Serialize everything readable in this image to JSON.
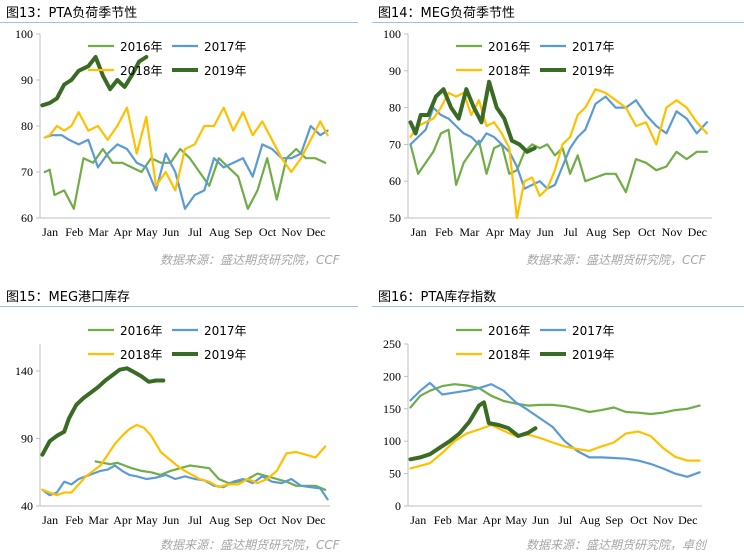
{
  "source_left": "数据来源：盛达期货研究院，CCF",
  "source_right_top": "数据来源：盛达期货研究院，CCF",
  "source_left_bottom": "数据来源：盛达期货研究院，CCF",
  "source_right_bottom": "数据来源：盛达期货研究院，卓创",
  "colors": {
    "2016年": "#70ad47",
    "2017年": "#5b9bd5",
    "2018年": "#ffc000",
    "2019年": "#3a6b25"
  },
  "months": [
    "Jan",
    "Feb",
    "Mar",
    "Apr",
    "May",
    "Jun",
    "Jul",
    "Aug",
    "Sep",
    "Oct",
    "Nov",
    "Dec"
  ],
  "month_labels": [
    "Jan",
    "Feb",
    "Mar",
    "Apr",
    "May",
    "Jun",
    "Jul",
    "Aug",
    "Sep",
    "Oct",
    "Nov",
    "Dec"
  ],
  "chart_data": [
    {
      "panel_title": "图13：PTA负荷季节性",
      "type": "line",
      "ylim": [
        60,
        100
      ],
      "yticks": [
        60,
        70,
        80,
        90,
        100
      ],
      "legend": [
        "2016年",
        "2017年",
        "2018年",
        "2019年"
      ],
      "series": [
        {
          "name": "2016年",
          "x": [
            0.2,
            0.4,
            0.6,
            1.0,
            1.4,
            1.8,
            2.2,
            2.6,
            3.0,
            3.4,
            3.8,
            4.2,
            4.6,
            5.0,
            5.4,
            5.8,
            6.2,
            6.6,
            7.0,
            7.4,
            7.8,
            8.2,
            8.6,
            9.0,
            9.4,
            9.8,
            10.2,
            10.6,
            11.0,
            11.4,
            11.8
          ],
          "values": [
            70,
            70.5,
            65,
            66,
            62,
            73,
            72,
            75,
            72,
            72,
            71,
            70,
            73,
            72,
            72,
            75,
            73,
            70,
            67,
            73,
            71,
            69,
            62,
            66,
            73,
            64,
            73,
            75,
            73,
            73,
            72
          ]
        },
        {
          "name": "2017年",
          "x": [
            0.2,
            0.5,
            0.9,
            1.2,
            1.6,
            2.0,
            2.4,
            2.8,
            3.2,
            3.6,
            4.0,
            4.4,
            4.8,
            5.2,
            5.6,
            6.0,
            6.4,
            6.8,
            7.2,
            7.6,
            8.0,
            8.4,
            8.8,
            9.2,
            9.6,
            10.0,
            10.4,
            10.8,
            11.2,
            11.6,
            11.9
          ],
          "values": [
            77.5,
            78,
            78,
            77,
            76,
            77,
            71,
            74,
            76,
            75,
            72,
            71,
            66,
            74,
            70,
            62,
            65,
            66,
            73,
            71,
            72,
            73,
            69,
            76,
            75,
            73,
            73,
            74,
            80,
            78,
            79
          ]
        },
        {
          "name": "2018年",
          "x": [
            0.2,
            0.4,
            0.7,
            1.0,
            1.3,
            1.6,
            2.0,
            2.4,
            2.8,
            3.2,
            3.6,
            4.0,
            4.4,
            4.8,
            5.2,
            5.6,
            6.0,
            6.4,
            6.8,
            7.2,
            7.6,
            8.0,
            8.4,
            8.8,
            9.2,
            9.6,
            10.0,
            10.4,
            10.8,
            11.2,
            11.6,
            11.9
          ],
          "values": [
            77.5,
            78,
            80,
            79,
            80,
            83,
            79,
            80,
            77,
            80,
            84,
            74,
            82,
            67,
            70,
            66,
            75,
            76,
            80,
            80,
            84,
            79,
            83,
            78,
            81,
            77,
            73,
            70,
            73,
            77,
            81,
            78
          ]
        },
        {
          "name": "2019年",
          "x": [
            0.1,
            0.4,
            0.7,
            1.0,
            1.3,
            1.6,
            2.0,
            2.3,
            2.6,
            2.9,
            3.2,
            3.5,
            3.8,
            4.1,
            4.4
          ],
          "values": [
            84.5,
            85,
            86,
            89,
            90,
            92,
            93,
            95,
            91,
            88,
            90,
            88.5,
            91,
            94,
            95
          ]
        }
      ]
    },
    {
      "panel_title": "图14：MEG负荷季节性",
      "type": "line",
      "ylim": [
        50,
        100
      ],
      "yticks": [
        50,
        60,
        70,
        80,
        90,
        100
      ],
      "legend": [
        "2016年",
        "2017年",
        "2018年",
        "2019年"
      ],
      "series": [
        {
          "name": "2016年",
          "x": [
            0.1,
            0.4,
            0.7,
            1.0,
            1.3,
            1.6,
            1.9,
            2.2,
            2.5,
            2.8,
            3.1,
            3.4,
            3.7,
            4.0,
            4.3,
            4.6,
            4.9,
            5.2,
            5.5,
            5.8,
            6.1,
            6.4,
            6.7,
            7.0,
            7.4,
            7.8,
            8.2,
            8.6,
            9.0,
            9.4,
            9.8,
            10.2,
            10.6,
            11.0,
            11.4,
            11.8
          ],
          "values": [
            70,
            62,
            65,
            68,
            73,
            74,
            59,
            65,
            68,
            71,
            62,
            69,
            70,
            62,
            63,
            68,
            70,
            69,
            70,
            67,
            69,
            62,
            67,
            60,
            61,
            62,
            62,
            57,
            66,
            65,
            63,
            64,
            68,
            66,
            68,
            68
          ]
        },
        {
          "name": "2017年",
          "x": [
            0.1,
            0.4,
            0.7,
            1.0,
            1.3,
            1.6,
            1.9,
            2.2,
            2.5,
            2.8,
            3.1,
            3.4,
            3.7,
            4.0,
            4.3,
            4.6,
            4.9,
            5.2,
            5.5,
            5.8,
            6.1,
            6.4,
            6.7,
            7.0,
            7.4,
            7.8,
            8.2,
            8.6,
            9.0,
            9.4,
            9.8,
            10.2,
            10.6,
            11.0,
            11.4,
            11.8
          ],
          "values": [
            70,
            72,
            74,
            80,
            78,
            77,
            75,
            73,
            72,
            70,
            73,
            72,
            70,
            68,
            64,
            58,
            59,
            60,
            58,
            59,
            64,
            69,
            72,
            74,
            81,
            83,
            80,
            80,
            82,
            78,
            75,
            73,
            79,
            77,
            73,
            76
          ]
        },
        {
          "name": "2018年",
          "x": [
            0.1,
            0.4,
            0.7,
            1.0,
            1.3,
            1.6,
            1.9,
            2.2,
            2.5,
            2.8,
            3.1,
            3.4,
            3.7,
            4.0,
            4.3,
            4.6,
            4.9,
            5.2,
            5.5,
            5.8,
            6.1,
            6.4,
            6.7,
            7.0,
            7.4,
            7.8,
            8.2,
            8.6,
            9.0,
            9.4,
            9.8,
            10.2,
            10.6,
            11.0,
            11.4,
            11.8
          ],
          "values": [
            72,
            75,
            76,
            77,
            80,
            84,
            83,
            84,
            78,
            82,
            75,
            76,
            73,
            69,
            50,
            60,
            61,
            56,
            58,
            63,
            70,
            72,
            78,
            80,
            85,
            84,
            82,
            80,
            75,
            76,
            70,
            80,
            82,
            80,
            76,
            73
          ]
        },
        {
          "name": "2019年",
          "x": [
            0.1,
            0.3,
            0.5,
            0.8,
            1.1,
            1.4,
            1.7,
            2.0,
            2.3,
            2.6,
            2.9,
            3.2,
            3.5,
            3.8,
            4.1,
            4.4,
            4.7,
            5.0
          ],
          "values": [
            76,
            73,
            78,
            78,
            83,
            85,
            80,
            77,
            85,
            80,
            76,
            87,
            80,
            77,
            71,
            70,
            68,
            69
          ]
        }
      ]
    },
    {
      "panel_title": "图15：MEG港口库存",
      "type": "line",
      "ylim": [
        40,
        160
      ],
      "yticks": [
        40,
        90,
        140
      ],
      "legend": [
        "2016年",
        "2017年",
        "2018年",
        "2019年"
      ],
      "series": [
        {
          "name": "2016年",
          "x": [
            2.3,
            2.6,
            2.9,
            3.2,
            3.5,
            3.8,
            4.2,
            4.6,
            5.0,
            5.4,
            5.8,
            6.2,
            6.6,
            7.0,
            7.4,
            7.8,
            8.2,
            8.6,
            9.0,
            9.4,
            9.8,
            10.2,
            10.6,
            11.0,
            11.4,
            11.8
          ],
          "values": [
            73,
            72,
            71,
            72,
            70,
            68,
            66,
            65,
            63,
            66,
            68,
            70,
            69,
            68,
            60,
            57,
            58,
            60,
            64,
            62,
            60,
            58,
            55,
            55,
            55,
            52
          ]
        },
        {
          "name": "2017年",
          "x": [
            0.1,
            0.4,
            0.7,
            1.0,
            1.3,
            1.6,
            1.9,
            2.2,
            2.5,
            2.8,
            3.1,
            3.4,
            3.7,
            4.0,
            4.4,
            4.8,
            5.2,
            5.6,
            6.0,
            6.4,
            6.8,
            7.2,
            7.6,
            8.0,
            8.4,
            8.8,
            9.2,
            9.6,
            10.0,
            10.4,
            10.8,
            11.2,
            11.6,
            11.9
          ],
          "values": [
            52,
            48,
            50,
            58,
            56,
            60,
            62,
            64,
            66,
            67,
            70,
            66,
            63,
            62,
            60,
            61,
            63,
            60,
            62,
            60,
            59,
            55,
            54,
            58,
            60,
            57,
            62,
            58,
            57,
            60,
            55,
            54,
            53,
            45
          ]
        },
        {
          "name": "2018年",
          "x": [
            0.1,
            0.4,
            0.7,
            1.0,
            1.3,
            1.6,
            1.9,
            2.2,
            2.5,
            2.8,
            3.1,
            3.4,
            3.7,
            4.0,
            4.3,
            4.6,
            5.0,
            5.4,
            5.8,
            6.2,
            6.6,
            7.0,
            7.4,
            7.8,
            8.2,
            8.6,
            9.0,
            9.4,
            9.8,
            10.2,
            10.6,
            11.0,
            11.4,
            11.8
          ],
          "values": [
            52,
            50,
            48,
            50,
            50,
            56,
            62,
            66,
            70,
            78,
            86,
            92,
            97,
            100,
            98,
            92,
            80,
            74,
            68,
            64,
            60,
            58,
            54,
            56,
            56,
            60,
            57,
            60,
            66,
            79,
            80,
            78,
            76,
            84
          ]
        },
        {
          "name": "2019年",
          "x": [
            0.1,
            0.4,
            0.7,
            1.0,
            1.2,
            1.5,
            1.8,
            2.1,
            2.4,
            2.7,
            3.0,
            3.3,
            3.6,
            3.9,
            4.2,
            4.5,
            4.8,
            5.1
          ],
          "values": [
            78,
            88,
            92,
            95,
            105,
            115,
            120,
            124,
            128,
            133,
            137,
            141,
            142,
            139,
            136,
            132,
            133,
            133
          ]
        }
      ]
    },
    {
      "panel_title": "图16：PTA库存指数",
      "type": "line",
      "ylim": [
        0,
        250
      ],
      "yticks": [
        0,
        50,
        100,
        150,
        200,
        250
      ],
      "legend": [
        "2016年",
        "2017年",
        "2018年",
        "2019年"
      ],
      "series": [
        {
          "name": "2016年",
          "x": [
            0.1,
            0.5,
            0.9,
            1.4,
            1.9,
            2.4,
            2.9,
            3.4,
            3.9,
            4.4,
            4.9,
            5.4,
            5.9,
            6.4,
            6.9,
            7.4,
            7.9,
            8.4,
            8.9,
            9.4,
            9.9,
            10.4,
            10.9,
            11.4,
            11.9
          ],
          "values": [
            152,
            170,
            178,
            185,
            188,
            186,
            182,
            170,
            162,
            158,
            155,
            156,
            156,
            154,
            150,
            145,
            148,
            152,
            145,
            144,
            142,
            144,
            148,
            150,
            155
          ]
        },
        {
          "name": "2017年",
          "x": [
            0.1,
            0.5,
            0.9,
            1.4,
            1.9,
            2.4,
            2.9,
            3.4,
            3.9,
            4.4,
            4.9,
            5.4,
            5.9,
            6.4,
            6.9,
            7.4,
            7.9,
            8.4,
            8.9,
            9.4,
            9.9,
            10.4,
            10.9,
            11.4,
            11.9
          ],
          "values": [
            163,
            178,
            190,
            172,
            175,
            178,
            182,
            188,
            178,
            160,
            148,
            135,
            122,
            100,
            85,
            75,
            75,
            74,
            73,
            70,
            65,
            58,
            50,
            45,
            52
          ]
        },
        {
          "name": "2018年",
          "x": [
            0.1,
            0.5,
            0.9,
            1.4,
            1.9,
            2.4,
            2.9,
            3.4,
            3.9,
            4.4,
            4.9,
            5.4,
            5.9,
            6.4,
            6.9,
            7.4,
            7.9,
            8.4,
            8.9,
            9.4,
            9.9,
            10.4,
            10.9,
            11.4,
            11.9
          ],
          "values": [
            58,
            62,
            66,
            82,
            100,
            112,
            118,
            125,
            116,
            108,
            110,
            105,
            98,
            92,
            88,
            85,
            92,
            98,
            112,
            115,
            108,
            90,
            76,
            70,
            70
          ]
        },
        {
          "name": "2019年",
          "x": [
            0.1,
            0.5,
            0.9,
            1.3,
            1.7,
            2.1,
            2.5,
            2.9,
            3.1,
            3.3,
            3.7,
            4.1,
            4.5,
            4.9,
            5.2
          ],
          "values": [
            72,
            75,
            80,
            90,
            100,
            112,
            130,
            155,
            160,
            128,
            125,
            120,
            108,
            113,
            120
          ]
        }
      ]
    }
  ]
}
